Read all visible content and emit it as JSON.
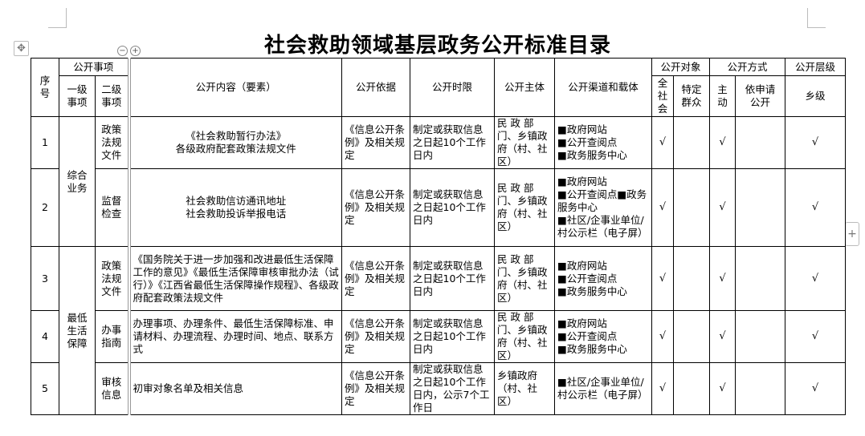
{
  "title": "社会救助领域基层政务公开标准目录",
  "headers": {
    "seq": "序\n号",
    "items_group": "公开事项",
    "level1": "一级\n事项",
    "level2": "二级\n事项",
    "content": "公开内容（要素）",
    "basis": "公开依据",
    "deadline": "公开时限",
    "subject": "公开主体",
    "channel": "公开渠道和载体",
    "target_group": "公开对象",
    "target_all": "全\n社\n会",
    "target_specific": "特定\n群众",
    "mode_group": "公开方式",
    "mode_active": "主\n动",
    "mode_request": "依申请\n公开",
    "level_group": "公开层级",
    "level_township": "乡级"
  },
  "groups": [
    "综合\n业务",
    "最低\n生活\n保障"
  ],
  "rows": [
    {
      "seq": "1",
      "level2": "政策\n法规\n文件",
      "content": "《社会救助暂行办法》\n各级政府配套政策法规文件",
      "basis": "《信息公开条例》及相关规定",
      "deadline": "制定或获取信息之日起10个工作日内",
      "subject": "民 政 部门、乡镇政府（村、社区）",
      "channel": "■政府网站\n■公开查阅点\n■政务服务中心",
      "all": "√",
      "specific": "",
      "active": "√",
      "request": "",
      "township": "√"
    },
    {
      "seq": "2",
      "level2": "监督\n检查",
      "content": "社会救助信访通讯地址\n社会救助投诉举报电话",
      "basis": "《信息公开条例》及相关规定",
      "deadline": "制定或获取信息之日起10个工作日内",
      "subject": "民 政 部门、乡镇政府（村、社区）",
      "channel": "■政府网站\n■公开查阅点■政务服务中心\n■社区/企事业单位/村公示栏（电子屏）",
      "all": "√",
      "specific": "",
      "active": "√",
      "request": "",
      "township": "√"
    },
    {
      "seq": "3",
      "level2": "政策\n法规\n文件",
      "content": "《国务院关于进一步加强和改进最低生活保障工作的意见》《最低生活保障审核审批办法（试行）》《江西省最低生活保障操作规程》、各级政府配套政策法规文件",
      "basis": "《信息公开条例》及相关规定",
      "deadline": "制定或获取信息之日起10个工作日内",
      "subject": "民 政 部门、乡镇政府（村、社区）",
      "channel": "■政府网站\n■公开查阅点\n■政务服务中心",
      "all": "√",
      "specific": "",
      "active": "√",
      "request": "",
      "township": "√"
    },
    {
      "seq": "4",
      "level2": "办事\n指南",
      "content": "办理事项、办理条件、最低生活保障标准、申请材料、办理流程、办理时间、地点、联系方式",
      "basis": "《信息公开条例》及相关规定",
      "deadline": "制定或获取信息之日起10个工作日内",
      "subject": "民 政 部门、乡镇政府（村、社区）",
      "channel": "■政府网站\n■公开查阅点\n■政务服务中心",
      "all": "√",
      "specific": "",
      "active": "√",
      "request": "",
      "township": "√"
    },
    {
      "seq": "5",
      "level2": "审核\n信息",
      "content": "初审对象名单及相关信息",
      "basis": "《信息公开条例》及相关规定",
      "deadline": "制定或获取信息之日起10个工作日内，公示7个工作日",
      "subject": "乡镇政府（村、社区）",
      "channel": "■社区/企事业单位/村公示栏（电子屏）",
      "all": "√",
      "specific": "",
      "active": "√",
      "request": "",
      "township": "√"
    }
  ],
  "controls": {
    "move_icon": "move-icon",
    "col_minus": "−",
    "col_plus": "+",
    "row_plus": "+"
  }
}
